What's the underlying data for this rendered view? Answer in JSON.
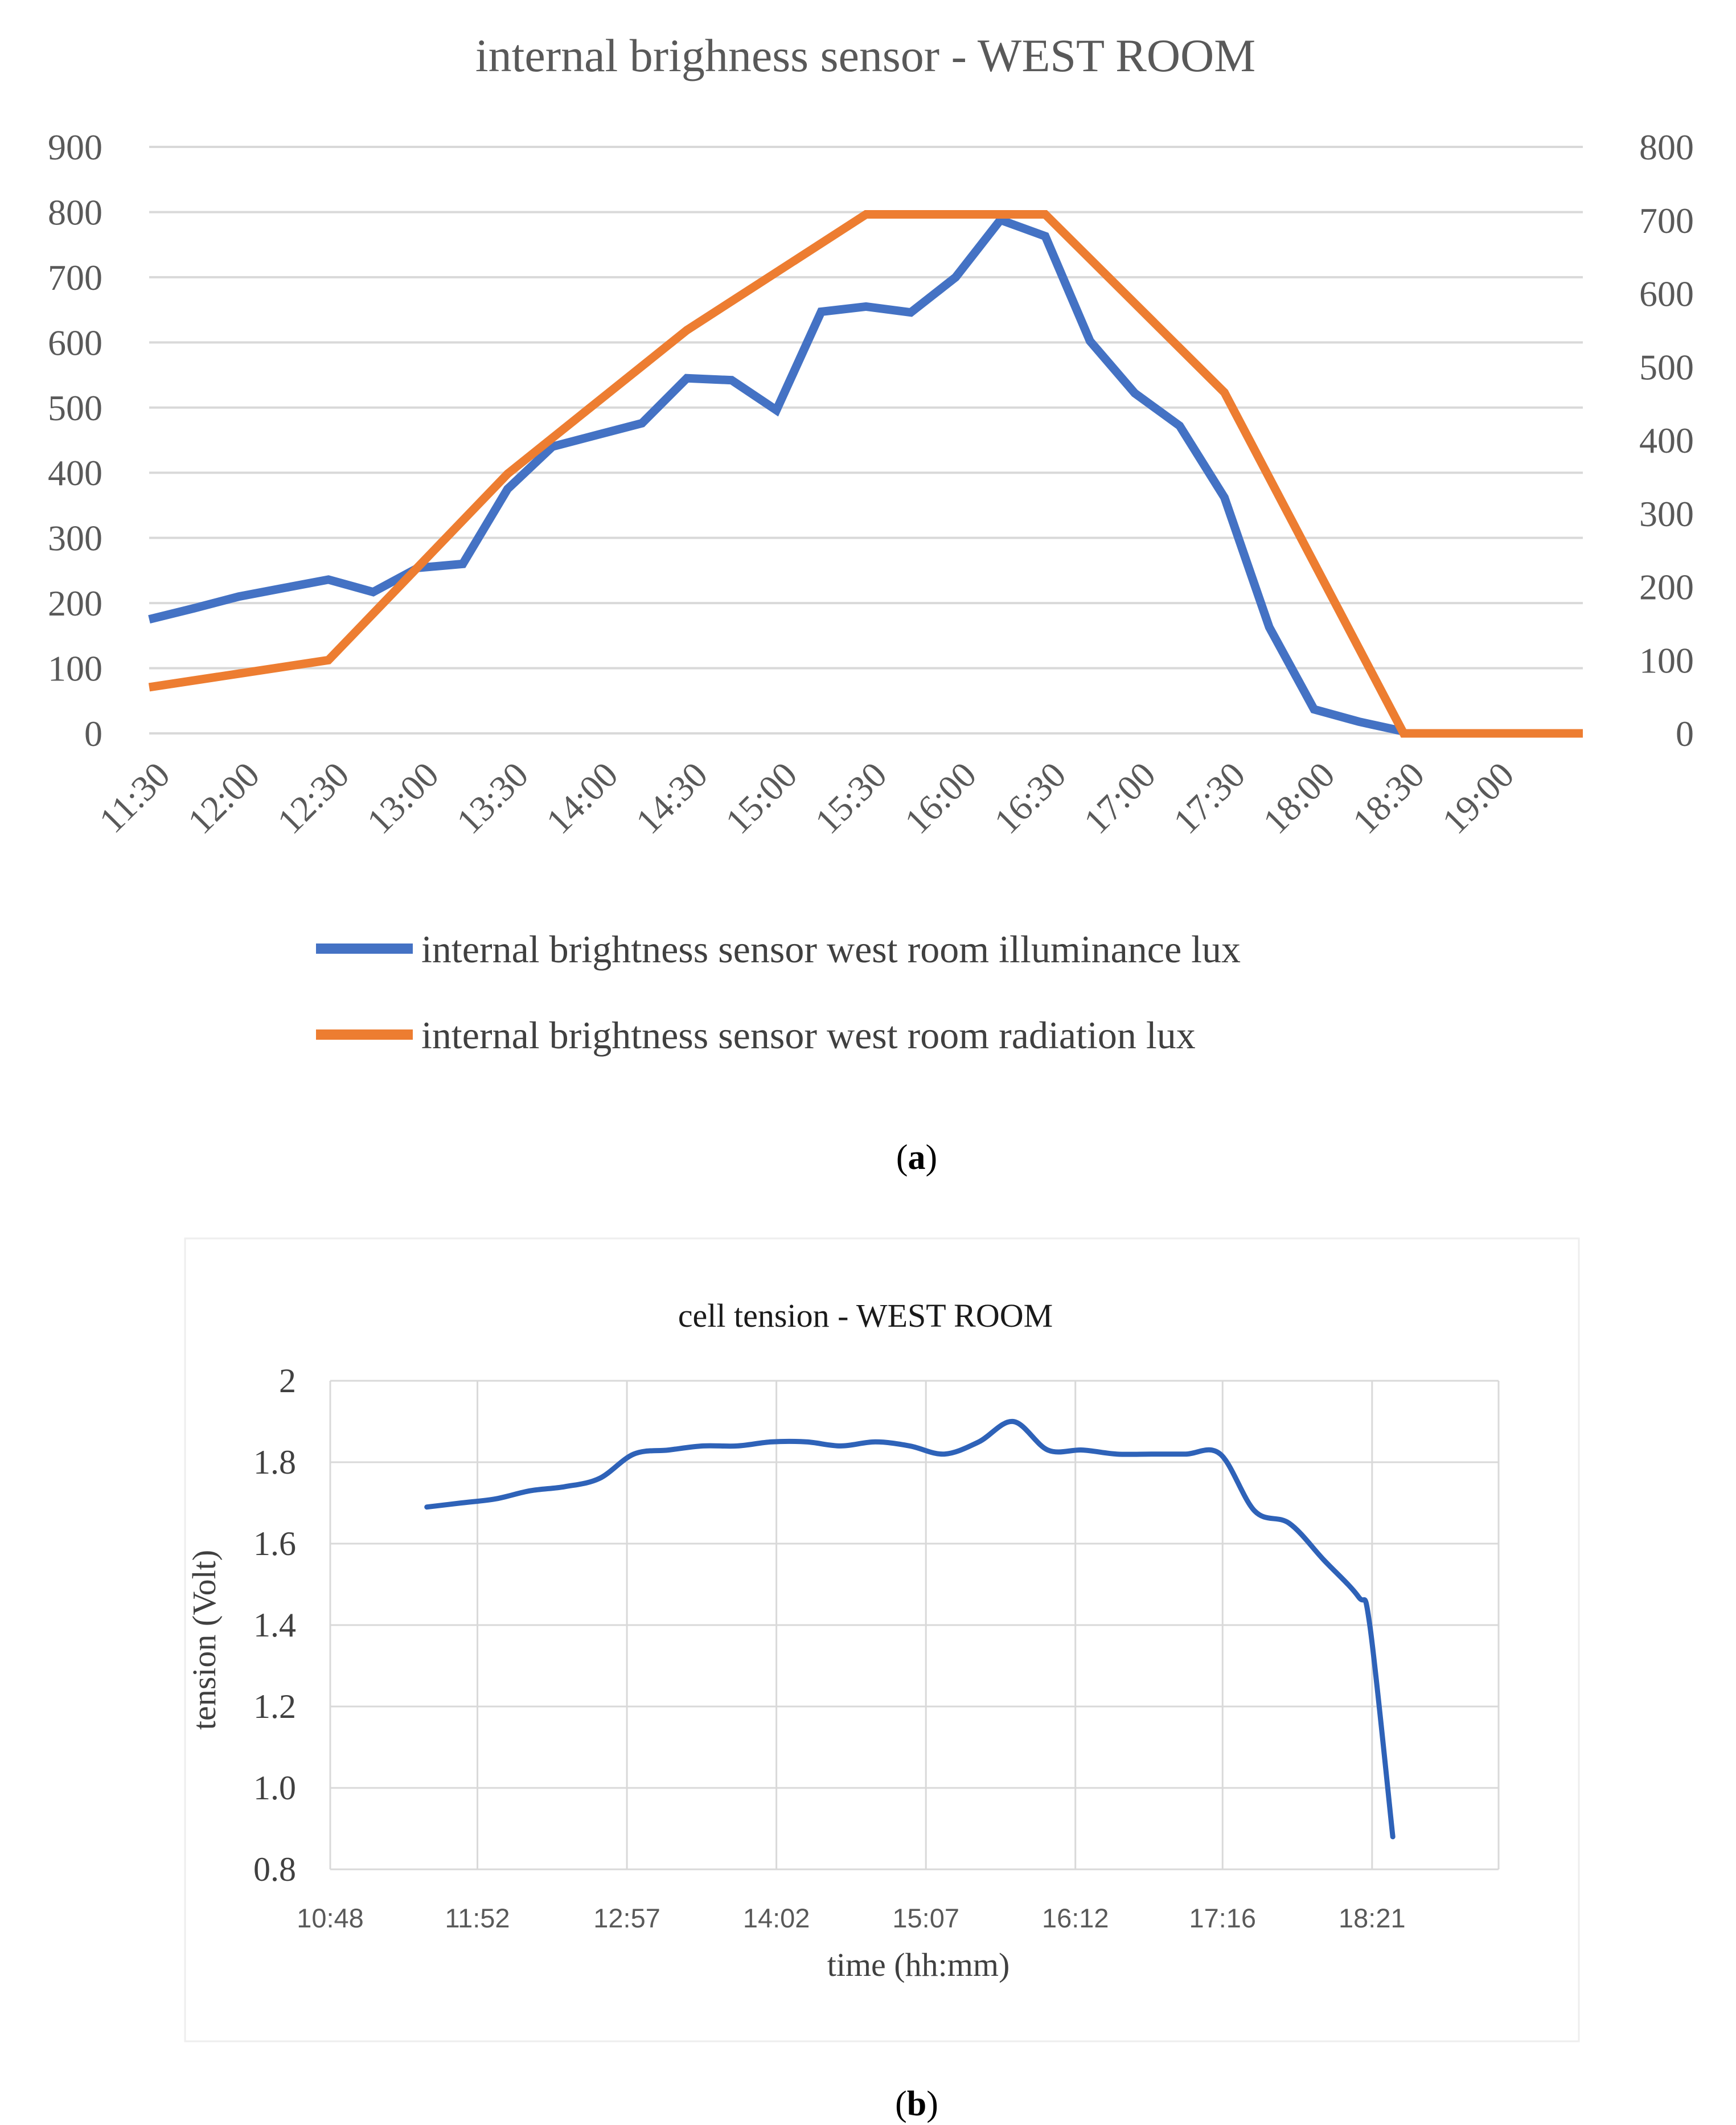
{
  "panel_a_label": "a",
  "panel_b_label": "b",
  "chart_data": [
    {
      "type": "line",
      "title": "internal brighness sensor - WEST ROOM",
      "xlabel": "",
      "ylabel": "",
      "x_ticks": [
        "11:30",
        "12:00",
        "12:30",
        "13:00",
        "13:30",
        "14:00",
        "14:30",
        "15:00",
        "15:30",
        "16:00",
        "16:30",
        "17:00",
        "17:30",
        "18:00",
        "18:30",
        "19:00"
      ],
      "y_left_ticks": [
        0,
        100,
        200,
        300,
        400,
        500,
        600,
        700,
        800,
        900
      ],
      "y_right_ticks": [
        0,
        100,
        200,
        300,
        400,
        500,
        600,
        700,
        800
      ],
      "y_left_lim": [
        0,
        900
      ],
      "y_right_lim": [
        0,
        800
      ],
      "x_lim_hours": [
        11.5,
        19.5
      ],
      "grid": true,
      "legend_position": "bottom",
      "series": [
        {
          "name": "internal brightness sensor west room illuminance lux",
          "axis": "left",
          "color": "#4472C4",
          "x": [
            "11:30",
            "11:45",
            "12:00",
            "12:15",
            "12:30",
            "12:45",
            "13:00",
            "13:15",
            "13:30",
            "13:45",
            "14:00",
            "14:15",
            "14:30",
            "14:45",
            "15:00",
            "15:15",
            "15:30",
            "15:45",
            "16:00",
            "16:15",
            "16:30",
            "16:45",
            "17:00",
            "17:15",
            "17:30",
            "17:45",
            "18:00",
            "18:15",
            "18:30"
          ],
          "values": [
            175,
            192,
            210,
            223,
            236,
            217,
            254,
            260,
            375,
            440,
            458,
            476,
            545,
            542,
            496,
            647,
            655,
            646,
            700,
            788,
            763,
            602,
            522,
            472,
            362,
            163,
            37,
            18,
            3
          ]
        },
        {
          "name": "internal brightness sensor west room radiation lux",
          "axis": "right",
          "color": "#ED7D31",
          "x": [
            "11:30",
            "12:30",
            "13:30",
            "14:30",
            "15:30",
            "16:00",
            "16:30",
            "17:30",
            "18:30",
            "19:30"
          ],
          "values": [
            63,
            100,
            354,
            550,
            708,
            708,
            708,
            465,
            0,
            0
          ]
        }
      ]
    },
    {
      "type": "line",
      "title": "cell tension - WEST ROOM",
      "xlabel": "time (hh:mm)",
      "ylabel": "tension (Volt)",
      "x_ticks": [
        "10:48",
        "11:52",
        "12:57",
        "14:02",
        "15:07",
        "16:12",
        "17:16",
        "18:21"
      ],
      "y_ticks": [
        "0.8",
        "1.0",
        "1.2",
        "1.4",
        "1.6",
        "1.8",
        "2"
      ],
      "y_lim": [
        0.8,
        2.0
      ],
      "x_lim": [
        "10:48",
        "19:16"
      ],
      "grid": true,
      "series": [
        {
          "name": "",
          "color": "#2E62B8",
          "x": [
            "11:30",
            "11:45",
            "12:00",
            "12:15",
            "12:30",
            "12:45",
            "13:00",
            "13:15",
            "13:30",
            "13:45",
            "14:00",
            "14:15",
            "14:30",
            "14:45",
            "15:00",
            "15:15",
            "15:30",
            "15:45",
            "16:00",
            "16:15",
            "16:30",
            "16:45",
            "17:00",
            "17:15",
            "17:30",
            "17:45",
            "18:00",
            "18:15",
            "18:20",
            "18:30"
          ],
          "values": [
            1.69,
            1.7,
            1.71,
            1.73,
            1.74,
            1.76,
            1.82,
            1.83,
            1.84,
            1.84,
            1.85,
            1.85,
            1.84,
            1.85,
            1.84,
            1.82,
            1.85,
            1.9,
            1.83,
            1.83,
            1.82,
            1.82,
            1.82,
            1.82,
            1.68,
            1.65,
            1.56,
            1.47,
            1.4,
            0.88
          ]
        }
      ]
    }
  ]
}
